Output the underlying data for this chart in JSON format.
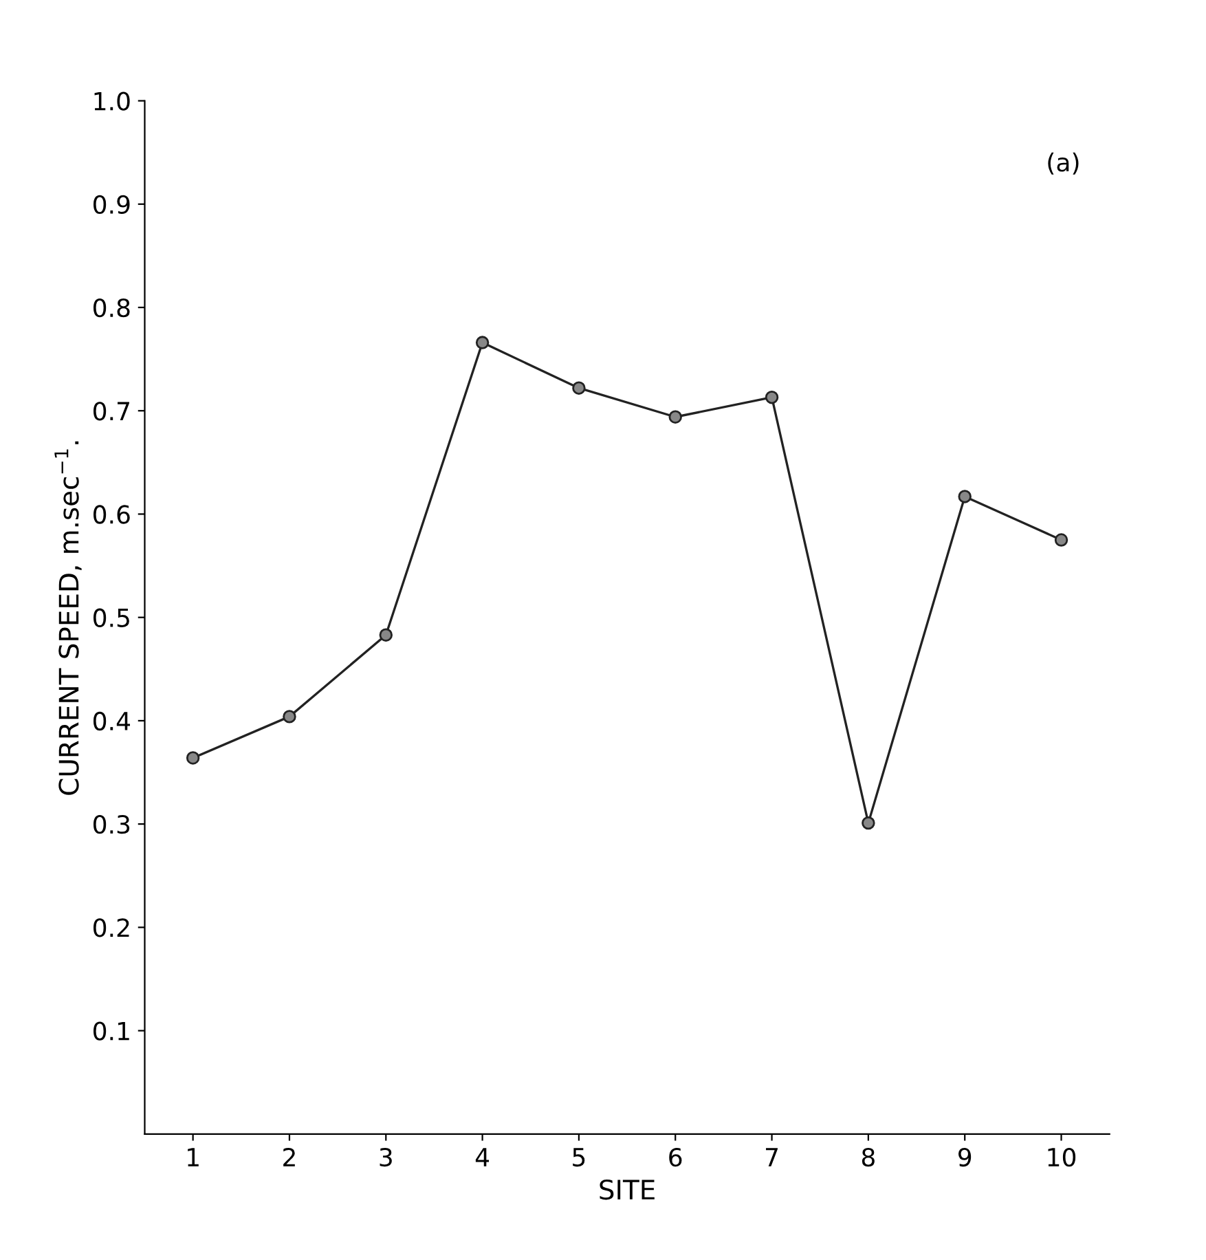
{
  "chart_data": {
    "type": "line",
    "xlabel": "SITE",
    "ylabel": "CURRENT SPEED, m.sec$^{−1}$.",
    "categories": [
      "1",
      "2",
      "3",
      "4",
      "5",
      "6",
      "7",
      "8",
      "9",
      "10"
    ],
    "series": [
      {
        "color": "#222222",
        "values": [
          0.364,
          0.404,
          0.483,
          0.766,
          0.722,
          0.694,
          0.713,
          0.301,
          0.617,
          0.575
        ]
      }
    ],
    "ylim": [
      0,
      1
    ],
    "yticks": [
      {
        "value": 0.1,
        "label": "0.1"
      },
      {
        "value": 0.2,
        "label": "0.2"
      },
      {
        "value": 0.3,
        "label": "0.3"
      },
      {
        "value": 0.4,
        "label": "0.4"
      },
      {
        "value": 0.5,
        "label": "0.5"
      },
      {
        "value": 0.6,
        "label": "0.6"
      },
      {
        "value": 0.7,
        "label": "0.7"
      },
      {
        "value": 0.8,
        "label": "0.8"
      },
      {
        "value": 0.9,
        "label": "0.9"
      },
      {
        "value": 1.0,
        "label": "1.0"
      }
    ],
    "annotations": [
      "(a)"
    ],
    "marker": "circle",
    "line_style": "solid",
    "grid": false
  }
}
